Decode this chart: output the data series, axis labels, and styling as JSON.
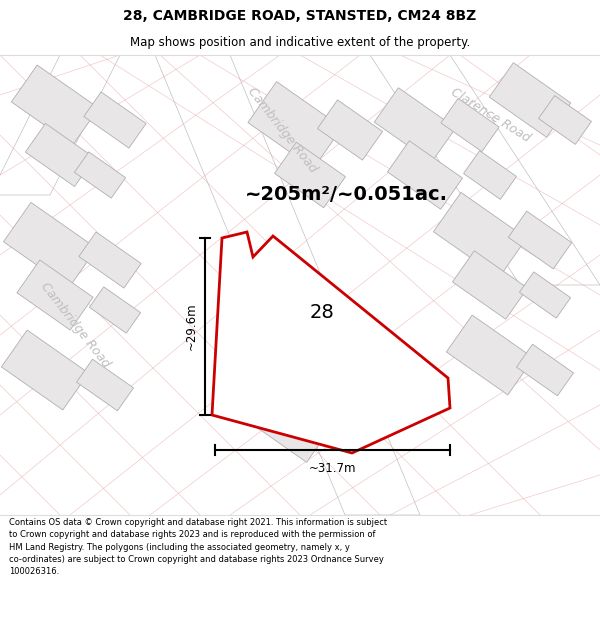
{
  "title_line1": "28, CAMBRIDGE ROAD, STANSTED, CM24 8BZ",
  "title_line2": "Map shows position and indicative extent of the property.",
  "area_text": "~205m²/~0.051ac.",
  "label_28": "28",
  "dim_vertical": "~29.6m",
  "dim_horizontal": "~31.7m",
  "road_label_cambridge_upper": "Cambridge Road",
  "road_label_cambridge_lower": "Cambridge Road",
  "road_label_clarence": "Clarence Road",
  "footer_text": "Contains OS data © Crown copyright and database right 2021. This information is subject\nto Crown copyright and database rights 2023 and is reproduced with the permission of\nHM Land Registry. The polygons (including the associated geometry, namely x, y\nco-ordinates) are subject to Crown copyright and database rights 2023 Ordnance Survey\n100026316.",
  "map_bg": "#f7f5f5",
  "building_fill": "#e8e6e6",
  "building_edge": "#b0b0b0",
  "road_fill": "#ffffff",
  "road_edge": "#c0c0c0",
  "pink_line": "#e8a8a8",
  "property_color": "#cc0000",
  "street_label_color": "#c0bebe",
  "title_fs": 10,
  "subtitle_fs": 8.5,
  "area_fs": 14,
  "dim_fs": 8.5,
  "label_fs": 14,
  "street_fs": 9,
  "footer_fs": 6.0
}
